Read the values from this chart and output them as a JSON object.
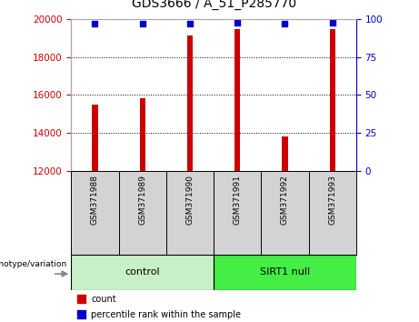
{
  "title": "GDS3666 / A_51_P285770",
  "samples": [
    "GSM371988",
    "GSM371989",
    "GSM371990",
    "GSM371991",
    "GSM371992",
    "GSM371993"
  ],
  "counts": [
    15500,
    15850,
    19150,
    19500,
    13800,
    19500
  ],
  "percentiles": [
    97,
    97,
    97,
    98,
    97,
    98
  ],
  "ymin": 12000,
  "ymax": 20000,
  "yticks_left": [
    12000,
    14000,
    16000,
    18000,
    20000
  ],
  "yticks_right": [
    0,
    25,
    50,
    75,
    100
  ],
  "bar_color": "#cc0000",
  "dot_color": "#0000cc",
  "groups": [
    {
      "label": "control",
      "start": 0,
      "end": 3,
      "color": "#c8f0c8"
    },
    {
      "label": "SIRT1 null",
      "start": 3,
      "end": 6,
      "color": "#44ee44"
    }
  ],
  "legend_items": [
    {
      "label": "count",
      "color": "#cc0000"
    },
    {
      "label": "percentile rank within the sample",
      "color": "#0000cc"
    }
  ],
  "axis_left_color": "#cc0000",
  "axis_right_color": "#0000cc",
  "background_color": "#ffffff"
}
